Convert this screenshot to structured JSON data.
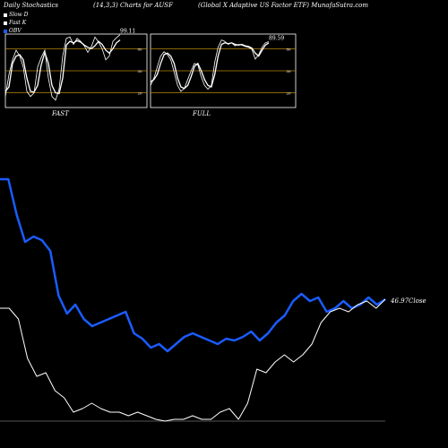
{
  "header": {
    "left": "Daily Stochastics",
    "center": "(14,3,3) Charts for AUSF",
    "right": "(Global X  Adaptive  US Factor ETF) MunafaSutra.com"
  },
  "legend": [
    {
      "label": "Slow  D",
      "color": "#ffffff"
    },
    {
      "label": "Fast  K",
      "color": "#ffffff"
    },
    {
      "label": "OBV",
      "color": "#1a5cff"
    }
  ],
  "colors": {
    "background": "#000000",
    "panel_border": "#ffffff",
    "level_line": "#b8860b",
    "stoch_line": "#ffffff",
    "obv_line": "#1a5cff",
    "close_line": "#ffffff"
  },
  "chart_data": [
    {
      "type": "line",
      "title": "FAST",
      "ylim": [
        0,
        100
      ],
      "levels": [
        20,
        50,
        80
      ],
      "level_labels": [
        "80",
        "50",
        "20"
      ],
      "last_value_label": "99.11",
      "series": [
        {
          "name": "Slow  D",
          "values": [
            22,
            28,
            60,
            70,
            72,
            65,
            40,
            22,
            21,
            30,
            58,
            75,
            60,
            30,
            20,
            19,
            40,
            85,
            90,
            88,
            91,
            89,
            85,
            82,
            80,
            84,
            90,
            86,
            78,
            74,
            80,
            88,
            92
          ]
        },
        {
          "name": "Fast  K",
          "values": [
            15,
            45,
            65,
            78,
            70,
            55,
            22,
            15,
            20,
            55,
            68,
            78,
            40,
            15,
            10,
            25,
            70,
            94,
            96,
            86,
            94,
            90,
            84,
            75,
            83,
            96,
            89,
            80,
            65,
            70,
            90,
            95,
            99.11
          ]
        }
      ]
    },
    {
      "type": "line",
      "title": "FULL",
      "ylim": [
        0,
        100
      ],
      "levels": [
        20,
        50,
        80
      ],
      "level_labels": [
        "80",
        "50",
        "20"
      ],
      "last_value_label": "89.59",
      "series": [
        {
          "name": "Slow  D",
          "values": [
            35,
            38,
            45,
            60,
            72,
            74,
            70,
            60,
            40,
            28,
            26,
            30,
            42,
            56,
            60,
            50,
            38,
            30,
            28,
            45,
            70,
            86,
            88,
            87,
            88,
            86,
            85,
            86,
            84,
            83,
            81,
            74,
            70,
            78,
            85,
            88
          ]
        },
        {
          "name": "Fast  K",
          "values": [
            30,
            40,
            55,
            70,
            76,
            72,
            65,
            48,
            30,
            22,
            26,
            38,
            50,
            60,
            58,
            42,
            30,
            25,
            30,
            62,
            82,
            92,
            90,
            86,
            88,
            84,
            86,
            85,
            83,
            82,
            79,
            66,
            72,
            82,
            88,
            89.59
          ]
        }
      ]
    },
    {
      "type": "line",
      "title": "",
      "close_label": "46.97Close",
      "series": [
        {
          "name": "OBV",
          "values": [
            90,
            90,
            70,
            55,
            58,
            56,
            50,
            25,
            15,
            20,
            12,
            8,
            10,
            12,
            14,
            16,
            4,
            1,
            -4,
            -2,
            -6,
            -2,
            2,
            4,
            2,
            0,
            -2,
            1,
            0,
            2,
            5,
            0,
            4,
            10,
            14,
            22,
            26,
            22,
            24,
            16,
            18,
            22,
            18,
            20,
            24,
            20,
            23
          ]
        },
        {
          "name": "Close",
          "values": [
            18,
            18,
            12,
            -10,
            -20,
            -18,
            -28,
            -32,
            -40,
            -38,
            -35,
            -38,
            -40,
            -40,
            -42,
            -40,
            -42,
            -44,
            -45,
            -44,
            -44,
            -42,
            -44,
            -44,
            -40,
            -38,
            -44,
            -35,
            -16,
            -18,
            -12,
            -8,
            -12,
            -8,
            -2,
            10,
            16,
            18,
            16,
            20,
            22,
            18,
            23
          ]
        }
      ]
    }
  ]
}
